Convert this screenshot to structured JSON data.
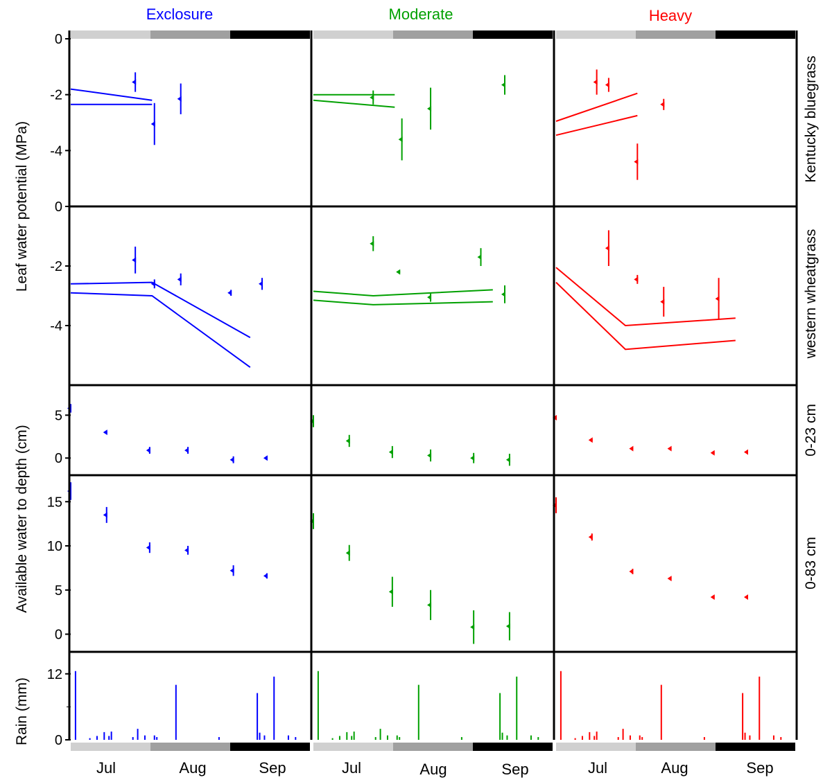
{
  "figure": {
    "y_axis_label": "Leaf water potential (MPa)",
    "y_axis_label_2": "Available water to depth (cm)",
    "month_labels": [
      "Jul",
      "Aug",
      "Sep"
    ],
    "treatments": [
      {
        "name": "Exclosure",
        "color": "#0000ff"
      },
      {
        "name": "Moderate",
        "color": "#00a000"
      },
      {
        "name": "Heavy",
        "color": "#ff0000"
      }
    ],
    "row_labels": [
      "Kentucky bluegrass",
      "western wheatgrass",
      "0-23 cm",
      "0-83 cm"
    ],
    "period_band_colors": [
      "#d0d0d0",
      "#a0a0a0",
      "#000000"
    ]
  },
  "chart_data": [
    {
      "type": "scatter",
      "row": "Kentucky bluegrass",
      "ylabel": "Leaf water potential (MPa)",
      "ylim": [
        -6,
        0
      ],
      "yticks": [
        0,
        -2,
        -4
      ],
      "panels": [
        {
          "treatment": "Exclosure",
          "points": [
            [
              0.27,
              -1.55,
              0.35
            ],
            [
              0.35,
              -3.05,
              0.75
            ],
            [
              0.46,
              -2.15,
              0.55
            ]
          ],
          "lines": [
            [
              [
                0.0,
                -1.8
              ],
              [
                0.34,
                -2.2
              ]
            ],
            [
              [
                0.0,
                -2.35
              ],
              [
                0.34,
                -2.35
              ]
            ]
          ]
        },
        {
          "treatment": "Moderate",
          "points": [
            [
              0.25,
              -2.1,
              0.25
            ],
            [
              0.37,
              -3.6,
              0.75
            ],
            [
              0.49,
              -2.5,
              0.75
            ],
            [
              0.8,
              -1.65,
              0.35
            ]
          ],
          "lines": [
            [
              [
                0.0,
                -2.0
              ],
              [
                0.34,
                -2.0
              ]
            ],
            [
              [
                0.0,
                -2.2
              ],
              [
                0.34,
                -2.45
              ]
            ]
          ]
        },
        {
          "treatment": "Heavy",
          "points": [
            [
              0.17,
              -1.55,
              0.45
            ],
            [
              0.22,
              -1.65,
              0.25
            ],
            [
              0.34,
              -4.4,
              0.65
            ],
            [
              0.45,
              -2.35,
              0.2
            ]
          ],
          "lines": [
            [
              [
                0.0,
                -2.95
              ],
              [
                0.34,
                -1.95
              ]
            ],
            [
              [
                0.0,
                -3.45
              ],
              [
                0.34,
                -2.75
              ]
            ]
          ]
        }
      ]
    },
    {
      "type": "scatter",
      "row": "western wheatgrass",
      "ylabel": "Leaf water potential (MPa)",
      "ylim": [
        -6,
        0
      ],
      "yticks": [
        0,
        -2,
        -4
      ],
      "panels": [
        {
          "treatment": "Exclosure",
          "points": [
            [
              0.27,
              -1.8,
              0.45
            ],
            [
              0.35,
              -2.6,
              0.15
            ],
            [
              0.46,
              -2.45,
              0.2
            ],
            [
              0.67,
              -2.9,
              0.1
            ],
            [
              0.8,
              -2.6,
              0.2
            ]
          ],
          "lines": [
            [
              [
                0.0,
                -2.6
              ],
              [
                0.34,
                -2.55
              ],
              [
                0.75,
                -4.4
              ]
            ],
            [
              [
                0.0,
                -2.9
              ],
              [
                0.34,
                -3.0
              ],
              [
                0.75,
                -5.4
              ]
            ]
          ]
        },
        {
          "treatment": "Moderate",
          "points": [
            [
              0.25,
              -1.25,
              0.25
            ],
            [
              0.36,
              -2.2,
              0.05
            ],
            [
              0.49,
              -3.05,
              0.15
            ],
            [
              0.7,
              -1.7,
              0.3
            ],
            [
              0.8,
              -2.95,
              0.3
            ]
          ],
          "lines": [
            [
              [
                0.0,
                -2.85
              ],
              [
                0.25,
                -3.0
              ],
              [
                0.75,
                -2.8
              ]
            ],
            [
              [
                0.0,
                -3.15
              ],
              [
                0.25,
                -3.3
              ],
              [
                0.75,
                -3.2
              ]
            ]
          ]
        },
        {
          "treatment": "Heavy",
          "points": [
            [
              0.22,
              -1.4,
              0.6
            ],
            [
              0.34,
              -2.45,
              0.15
            ],
            [
              0.45,
              -3.2,
              0.5
            ],
            [
              0.68,
              -3.1,
              0.7
            ]
          ],
          "lines": [
            [
              [
                0.0,
                -2.05
              ],
              [
                0.29,
                -4.0
              ],
              [
                0.75,
                -3.75
              ]
            ],
            [
              [
                0.0,
                -2.55
              ],
              [
                0.29,
                -4.8
              ],
              [
                0.75,
                -4.5
              ]
            ]
          ]
        }
      ]
    },
    {
      "type": "scatter",
      "row": "0-23 cm",
      "ylabel": "Available water to depth (cm)",
      "ylim": [
        -2,
        8.5
      ],
      "yticks": [
        5,
        0
      ],
      "panels": [
        {
          "treatment": "Exclosure",
          "points": [
            [
              0.0,
              5.8,
              0.5
            ],
            [
              0.15,
              3.0,
              0.2
            ],
            [
              0.33,
              0.9,
              0.4
            ],
            [
              0.49,
              0.9,
              0.4
            ],
            [
              0.68,
              -0.2,
              0.4
            ],
            [
              0.82,
              0.0,
              0.2
            ]
          ]
        },
        {
          "treatment": "Moderate",
          "points": [
            [
              0.0,
              4.3,
              0.7
            ],
            [
              0.15,
              2.0,
              0.7
            ],
            [
              0.33,
              0.7,
              0.7
            ],
            [
              0.49,
              0.3,
              0.7
            ],
            [
              0.67,
              0.0,
              0.6
            ],
            [
              0.82,
              -0.2,
              0.7
            ]
          ]
        },
        {
          "treatment": "Heavy",
          "points": [
            [
              0.0,
              4.7,
              0.1
            ],
            [
              0.15,
              2.1,
              0.1
            ],
            [
              0.32,
              1.1,
              0.1
            ],
            [
              0.48,
              1.1,
              0.1
            ],
            [
              0.66,
              0.6,
              0.1
            ],
            [
              0.8,
              0.7,
              0.1
            ]
          ]
        }
      ]
    },
    {
      "type": "scatter",
      "row": "0-83 cm",
      "ylabel": "Available water to depth (cm)",
      "ylim": [
        -2,
        18
      ],
      "yticks": [
        15,
        10,
        5,
        0
      ],
      "panels": [
        {
          "treatment": "Exclosure",
          "points": [
            [
              0.0,
              16.2,
              1.0
            ],
            [
              0.15,
              13.5,
              0.9
            ],
            [
              0.33,
              9.8,
              0.6
            ],
            [
              0.49,
              9.5,
              0.5
            ],
            [
              0.68,
              7.2,
              0.6
            ],
            [
              0.82,
              6.6,
              0.3
            ]
          ]
        },
        {
          "treatment": "Moderate",
          "points": [
            [
              0.0,
              12.8,
              0.9
            ],
            [
              0.15,
              9.2,
              0.9
            ],
            [
              0.33,
              4.8,
              1.7
            ],
            [
              0.49,
              3.3,
              1.7
            ],
            [
              0.67,
              0.8,
              1.9
            ],
            [
              0.82,
              0.9,
              1.6
            ]
          ]
        },
        {
          "treatment": "Heavy",
          "points": [
            [
              0.0,
              14.6,
              0.9
            ],
            [
              0.15,
              11.0,
              0.4
            ],
            [
              0.32,
              7.1,
              0.3
            ],
            [
              0.48,
              6.3,
              0.2
            ],
            [
              0.66,
              4.2,
              0.2
            ],
            [
              0.8,
              4.2,
              0.2
            ]
          ]
        }
      ]
    },
    {
      "type": "bar",
      "row": "Rain",
      "ylabel": "Rain (mm)",
      "ylim": [
        0,
        16
      ],
      "yticks": [
        12,
        0
      ],
      "x": [
        0.02,
        0.08,
        0.11,
        0.14,
        0.16,
        0.17,
        0.26,
        0.28,
        0.31,
        0.35,
        0.36,
        0.44,
        0.62,
        0.78,
        0.79,
        0.81,
        0.85,
        0.91,
        0.94
      ],
      "values": [
        12.5,
        0.3,
        0.7,
        1.4,
        0.7,
        1.5,
        0.5,
        2.0,
        0.8,
        0.8,
        0.5,
        10.0,
        0.5,
        8.5,
        1.3,
        0.8,
        11.5,
        0.8,
        0.5
      ]
    }
  ]
}
